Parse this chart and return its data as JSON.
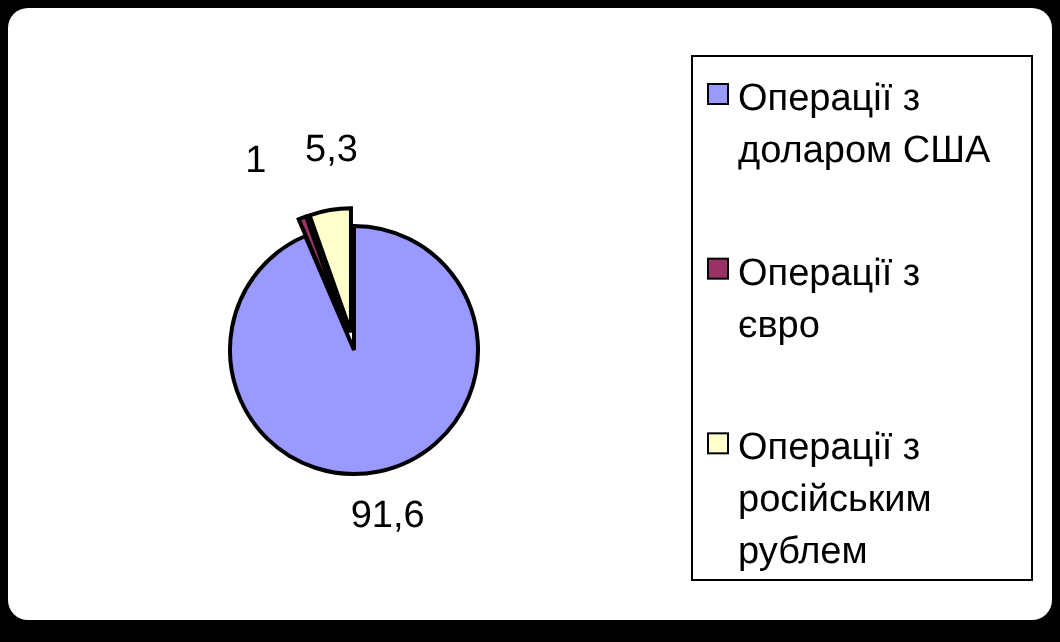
{
  "chart_data": {
    "type": "pie",
    "categories": [
      "Операції з доларом США",
      "Операції з євро",
      "Операції з російським рублем"
    ],
    "values": [
      91.6,
      1,
      5.3
    ],
    "colors": [
      "#9999ff",
      "#993366",
      "#ffffcc"
    ],
    "value_labels": [
      "91,6",
      "1",
      "5,3"
    ],
    "legend": "right"
  }
}
